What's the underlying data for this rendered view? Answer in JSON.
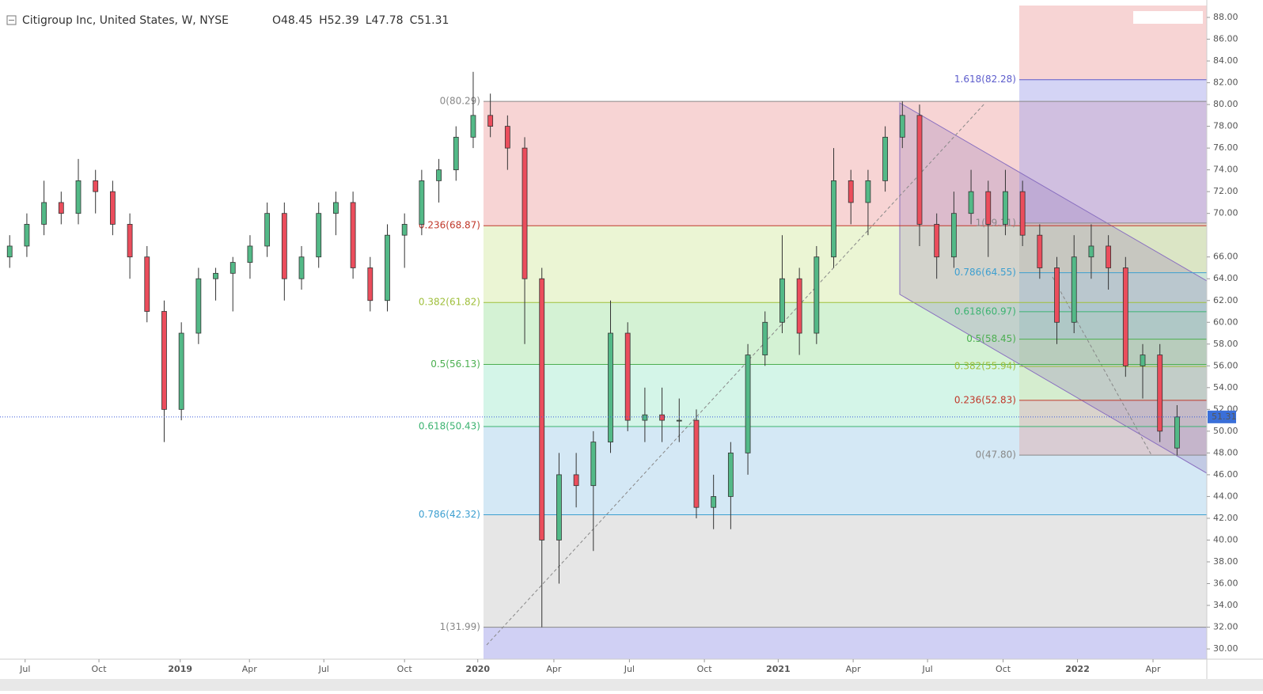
{
  "chart_data": {
    "type": "candlestick",
    "title": "Citigroup Inc, United States, W, NYSE",
    "ohlc_labels": [
      "O48.45",
      "H52.39",
      "L47.78",
      "C51.31"
    ],
    "last_price": 51.31,
    "up_color": "#53b987",
    "down_color": "#eb4d5c",
    "xlim": [
      0,
      210.2
    ],
    "ylim": [
      29.06,
      89.09
    ],
    "xticks": [
      {
        "value": 3.7,
        "label": "Jul"
      },
      {
        "value": 16.6,
        "label": "Oct"
      },
      {
        "value": 30.8,
        "label": "2019"
      },
      {
        "value": 42.9,
        "label": "Apr"
      },
      {
        "value": 55.9,
        "label": "Jul"
      },
      {
        "value": 70,
        "label": "Oct"
      },
      {
        "value": 82.8,
        "label": "2020"
      },
      {
        "value": 96.1,
        "label": "Apr"
      },
      {
        "value": 109.3,
        "label": "Jul"
      },
      {
        "value": 122.4,
        "label": "Oct"
      },
      {
        "value": 135.3,
        "label": "2021"
      },
      {
        "value": 148.4,
        "label": "Apr"
      },
      {
        "value": 161.4,
        "label": "Jul"
      },
      {
        "value": 174.6,
        "label": "Oct"
      },
      {
        "value": 187.6,
        "label": "2022"
      },
      {
        "value": 200.8,
        "label": "Apr"
      }
    ],
    "yticks": [
      {
        "value": 88,
        "label": "88.00"
      },
      {
        "value": 86,
        "label": "86.00"
      },
      {
        "value": 84,
        "label": "84.00"
      },
      {
        "value": 82,
        "label": "82.00"
      },
      {
        "value": 80,
        "label": "80.00"
      },
      {
        "value": 78,
        "label": "78.00"
      },
      {
        "value": 76,
        "label": "76.00"
      },
      {
        "value": 74,
        "label": "74.00"
      },
      {
        "value": 72,
        "label": "72.00"
      },
      {
        "value": 70,
        "label": "70.00"
      },
      {
        "value": 66,
        "label": "66.00"
      },
      {
        "value": 64,
        "label": "64.00"
      },
      {
        "value": 62,
        "label": "62.00"
      },
      {
        "value": 60,
        "label": "60.00"
      },
      {
        "value": 58,
        "label": "58.00"
      },
      {
        "value": 56,
        "label": "56.00"
      },
      {
        "value": 54,
        "label": "54.00"
      },
      {
        "value": 52,
        "label": "52.00"
      },
      {
        "value": 50,
        "label": "50.00"
      },
      {
        "value": 48,
        "label": "48.00"
      },
      {
        "value": 46,
        "label": "46.00"
      },
      {
        "value": 44,
        "label": "44.00"
      },
      {
        "value": 42,
        "label": "42.00"
      },
      {
        "value": 40,
        "label": "40.00"
      },
      {
        "value": 38,
        "label": "38.00"
      },
      {
        "value": 36,
        "label": "36.00"
      },
      {
        "value": 34,
        "label": "34.00"
      },
      {
        "value": 32,
        "label": "32.00"
      },
      {
        "value": 30,
        "label": "30.00"
      }
    ],
    "x": [
      1,
      4,
      7,
      10,
      13,
      16,
      19,
      22,
      25,
      28,
      31,
      34,
      37,
      40,
      43,
      46,
      49,
      52,
      55,
      58,
      61,
      64,
      67,
      70,
      73,
      76,
      79,
      82,
      85,
      88,
      91,
      94,
      97,
      100,
      103,
      106,
      109,
      112,
      115,
      118,
      121,
      124,
      127,
      130,
      133,
      136,
      139,
      142,
      145,
      148,
      151,
      154,
      157,
      160,
      163,
      166,
      169,
      172,
      175,
      178,
      181,
      184,
      187,
      190,
      193,
      196,
      199,
      202,
      205
    ],
    "candles": [
      [
        66,
        68,
        65,
        67
      ],
      [
        67,
        70,
        66,
        69
      ],
      [
        69,
        73,
        68,
        71
      ],
      [
        71,
        72,
        69,
        70
      ],
      [
        70,
        75,
        69,
        73
      ],
      [
        73,
        74,
        70,
        72
      ],
      [
        72,
        73,
        68,
        69
      ],
      [
        69,
        70,
        64,
        66
      ],
      [
        66,
        67,
        60,
        61
      ],
      [
        61,
        62,
        49,
        52
      ],
      [
        52,
        60,
        51,
        59
      ],
      [
        59,
        65,
        58,
        64
      ],
      [
        64,
        65,
        62,
        64.5
      ],
      [
        64.5,
        66,
        61,
        65.5
      ],
      [
        65.5,
        68,
        64,
        67
      ],
      [
        67,
        71,
        66,
        70
      ],
      [
        70,
        71,
        62,
        64
      ],
      [
        64,
        67,
        63,
        66
      ],
      [
        66,
        71,
        65,
        70
      ],
      [
        70,
        72,
        68,
        71
      ],
      [
        71,
        72,
        64,
        65
      ],
      [
        65,
        66,
        61,
        62
      ],
      [
        62,
        69,
        61,
        68
      ],
      [
        68,
        70,
        65,
        69
      ],
      [
        69,
        74,
        68,
        73
      ],
      [
        73,
        75,
        71,
        74
      ],
      [
        74,
        78,
        73,
        77
      ],
      [
        77,
        83,
        76,
        79
      ],
      [
        79,
        81,
        77,
        78
      ],
      [
        78,
        79,
        74,
        76
      ],
      [
        76,
        77,
        58,
        64
      ],
      [
        64,
        65,
        31.99,
        40
      ],
      [
        40,
        48,
        36,
        46
      ],
      [
        46,
        48,
        43,
        45
      ],
      [
        45,
        50,
        39,
        49
      ],
      [
        49,
        62,
        48,
        59
      ],
      [
        59,
        60,
        50,
        51
      ],
      [
        51,
        54,
        49,
        51.5
      ],
      [
        51.5,
        54,
        49,
        51
      ],
      [
        51,
        53,
        49,
        51
      ],
      [
        51,
        52,
        42,
        43
      ],
      [
        43,
        46,
        41,
        44
      ],
      [
        44,
        49,
        41,
        48
      ],
      [
        48,
        58,
        46,
        57
      ],
      [
        57,
        61,
        56,
        60
      ],
      [
        60,
        68,
        59,
        64
      ],
      [
        64,
        65,
        57,
        59
      ],
      [
        59,
        67,
        58,
        66
      ],
      [
        66,
        76,
        65,
        73
      ],
      [
        73,
        74,
        69,
        71
      ],
      [
        71,
        74,
        68,
        73
      ],
      [
        73,
        78,
        72,
        77
      ],
      [
        77,
        80.3,
        76,
        79
      ],
      [
        79,
        80,
        67,
        69
      ],
      [
        69,
        70,
        64,
        66
      ],
      [
        66,
        72,
        65,
        70
      ],
      [
        70,
        74,
        69,
        72
      ],
      [
        72,
        73,
        66,
        69
      ],
      [
        69,
        74,
        68,
        72
      ],
      [
        72,
        73,
        67,
        68
      ],
      [
        68,
        69,
        64,
        65
      ],
      [
        65,
        66,
        58,
        60
      ],
      [
        60,
        68,
        59,
        66
      ],
      [
        66,
        69,
        64,
        67
      ],
      [
        67,
        68,
        63,
        65
      ],
      [
        65,
        66,
        55,
        56
      ],
      [
        56,
        58,
        53,
        57
      ],
      [
        57,
        58,
        49,
        50
      ],
      [
        48.45,
        52.39,
        47.78,
        51.31
      ]
    ],
    "fib_left": [
      {
        "label": "0(80.29)",
        "value": 80.29,
        "color": "#888888",
        "fill": "rgba(240,170,170,0.5)"
      },
      {
        "label": "0.236(68.87)",
        "value": 68.87,
        "color": "#c0392b",
        "fill": "rgba(215,235,170,0.5)"
      },
      {
        "label": "0.382(61.82)",
        "value": 61.82,
        "color": "#9fbf3b",
        "fill": "rgba(170,230,170,0.5)"
      },
      {
        "label": "0.5(56.13)",
        "value": 56.13,
        "color": "#4caf50",
        "fill": "rgba(170,235,210,0.5)"
      },
      {
        "label": "0.618(50.43)",
        "value": 50.43,
        "color": "#3cb371",
        "fill": "rgba(170,210,235,0.5)"
      },
      {
        "label": "0.786(42.32)",
        "value": 42.32,
        "color": "#3d9fd0",
        "fill": "rgba(205,205,205,0.5)"
      },
      {
        "label": "1(31.99)",
        "value": 31.99,
        "color": "#888888",
        "fill": "rgba(170,170,235,0.55)"
      }
    ],
    "fib_right": [
      {
        "label": "1.618(82.28)",
        "value": 82.28,
        "color": "#5c5ccc",
        "fill": "rgba(170,170,235,0.5)"
      },
      {
        "label": "1(69.11)",
        "value": 69.11,
        "color": "#888888",
        "fill": "rgba(190,200,170,0.35)"
      },
      {
        "label": "0.786(64.55)",
        "value": 64.55,
        "color": "#3d9fd0",
        "fill": "rgba(140,200,220,0.35)"
      },
      {
        "label": "0.618(60.97)",
        "value": 60.97,
        "color": "#3cb371",
        "fill": "rgba(140,210,190,0.35)"
      },
      {
        "label": "0.5(58.45)",
        "value": 58.45,
        "color": "#4caf50",
        "fill": "rgba(180,225,160,0.4)"
      },
      {
        "label": "0.382(55.94)",
        "value": 55.94,
        "color": "#9fbf3b",
        "fill": "rgba(215,225,170,0.4)"
      },
      {
        "label": "0.236(52.83)",
        "value": 52.83,
        "color": "#c0392b",
        "fill": "rgba(225,170,170,0.45)"
      },
      {
        "label": "0(47.80)",
        "value": 47.8,
        "color": "#888888",
        "fill": "none"
      }
    ]
  }
}
